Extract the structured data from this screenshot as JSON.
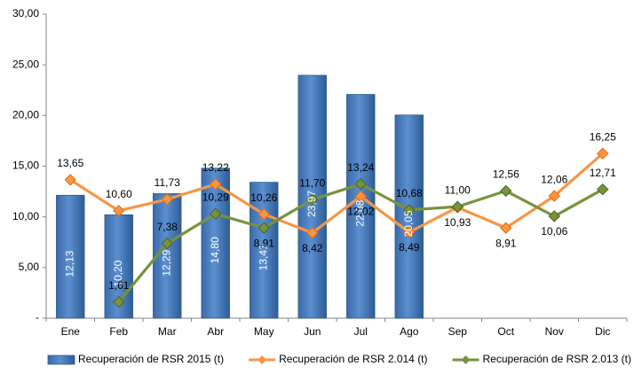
{
  "chart_data": {
    "type": "bar",
    "categories": [
      "Ene",
      "Feb",
      "Mar",
      "Abr",
      "May",
      "Jun",
      "Jul",
      "Ago",
      "Sep",
      "Oct",
      "Nov",
      "Dic"
    ],
    "ylim": [
      0,
      30
    ],
    "y_ticks": [
      "-",
      "5,00",
      "10,00",
      "15,00",
      "20,00",
      "25,00",
      "30,00"
    ],
    "grid": false,
    "legend_position": "bottom",
    "series": [
      {
        "name": "Recuperación de RSR 2015 (t)",
        "kind": "bar",
        "color": "#4f81bd",
        "values": [
          12.13,
          10.2,
          12.29,
          14.8,
          13.41,
          23.97,
          22.08,
          20.05,
          null,
          null,
          null,
          null
        ],
        "labels": [
          "12,13",
          "10,20",
          "12,29",
          "14,80",
          "13,41",
          "23,97",
          "22,08",
          "20,05",
          "",
          "",
          "",
          ""
        ]
      },
      {
        "name": "Recuperación de RSR 2.014 (t)",
        "kind": "line",
        "color": "#f79646",
        "values": [
          13.65,
          10.6,
          11.73,
          13.22,
          10.26,
          8.42,
          12.02,
          8.49,
          10.93,
          8.91,
          12.06,
          16.25
        ],
        "labels": [
          "13,65",
          "10,60",
          "11,73",
          "13,22",
          "10,26",
          "8,42",
          "12,02",
          "8,49",
          "10,93",
          "8,91",
          "12,06",
          "16,25"
        ]
      },
      {
        "name": "Recuperación de RSR 2.013 (t)",
        "kind": "line",
        "color": "#77933c",
        "values": [
          null,
          1.61,
          7.38,
          10.29,
          8.91,
          11.7,
          13.24,
          10.68,
          11.0,
          12.56,
          10.06,
          12.71
        ],
        "labels": [
          "",
          "1,61",
          "7,38",
          "10,29",
          "8,91",
          "11,70",
          "13,24",
          "10,68",
          "11,00",
          "12,56",
          "10,06",
          "12,71"
        ]
      }
    ]
  }
}
